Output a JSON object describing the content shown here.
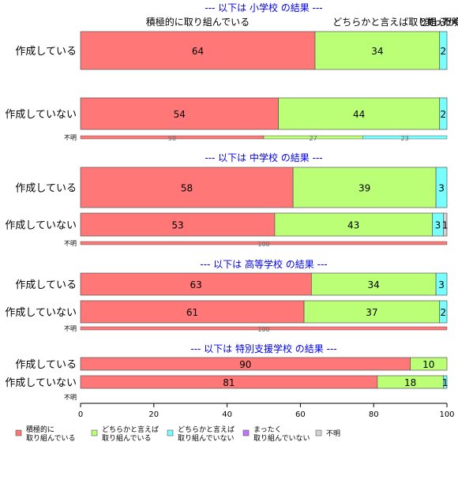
{
  "chart_data": {
    "type": "bar",
    "orientation": "horizontal",
    "stacked": true,
    "xlim": [
      0,
      100
    ],
    "x_ticks": [
      0,
      20,
      40,
      60,
      80,
      100
    ],
    "top_labels": [
      {
        "text": "積極的に取り組んでいる",
        "align": "center-of-first"
      },
      {
        "text": "どちらかと言えば取り組...",
        "align": "second"
      },
      {
        "text": "どちらか...",
        "align": "third"
      },
      {
        "text": "まったく...",
        "align": "fourth"
      },
      {
        "text": "不明",
        "align": "fifth"
      }
    ],
    "categories_legend": [
      {
        "line1": "積極的に",
        "line2": "取り組んでいる",
        "color": "#ff7777"
      },
      {
        "line1": "どちらかと言えば",
        "line2": "取り組んでいる",
        "color": "#bbff77"
      },
      {
        "line1": "どちらかと言えば",
        "line2": "取り組んでいない",
        "color": "#77ffff"
      },
      {
        "line1": "まったく",
        "line2": "取り組んでいない",
        "color": "#bb77ff"
      },
      {
        "line1": "不明",
        "line2": "",
        "color": "#d3d3d3"
      }
    ],
    "panels": [
      {
        "title": "--- 以下は 小学校 の結果 ---",
        "rows": [
          {
            "label": "作成している",
            "values": [
              64,
              34,
              2,
              0,
              0
            ],
            "labels": [
              "64",
              "34",
              "2",
              "",
              ""
            ]
          },
          {
            "label": "作成していない",
            "values": [
              54,
              44,
              2,
              0,
              0
            ],
            "labels": [
              "54",
              "44",
              "2",
              "",
              ""
            ]
          },
          {
            "label": "不明",
            "values": [
              50,
              27,
              23,
              0,
              0
            ],
            "labels": [
              "50",
              "27",
              "23",
              "",
              ""
            ],
            "thin": true
          }
        ]
      },
      {
        "title": "--- 以下は 中学校 の結果 ---",
        "rows": [
          {
            "label": "作成している",
            "values": [
              58,
              39,
              3,
              0,
              0
            ],
            "labels": [
              "58",
              "39",
              "3",
              "",
              ""
            ]
          },
          {
            "label": "作成していない",
            "values": [
              53,
              43,
              3,
              0,
              1
            ],
            "labels": [
              "53",
              "43",
              "3",
              "",
              "1"
            ]
          },
          {
            "label": "不明",
            "values": [
              100,
              0,
              0,
              0,
              0
            ],
            "labels": [
              "100",
              "",
              "",
              "",
              ""
            ],
            "thin": true
          }
        ]
      },
      {
        "title": "--- 以下は 高等学校 の結果 ---",
        "rows": [
          {
            "label": "作成している",
            "values": [
              63,
              34,
              3,
              0,
              0
            ],
            "labels": [
              "63",
              "34",
              "3",
              "",
              ""
            ]
          },
          {
            "label": "作成していない",
            "values": [
              61,
              37,
              2,
              0,
              0
            ],
            "labels": [
              "61",
              "37",
              "2",
              "",
              ""
            ]
          },
          {
            "label": "不明",
            "values": [
              100,
              0,
              0,
              0,
              0
            ],
            "labels": [
              "100",
              "",
              "",
              "",
              ""
            ],
            "thin": true
          }
        ]
      },
      {
        "title": "--- 以下は 特別支援学校 の結果 ---",
        "rows": [
          {
            "label": "作成している",
            "values": [
              90,
              10,
              0,
              0,
              0
            ],
            "labels": [
              "90",
              "10",
              "",
              "",
              ""
            ]
          },
          {
            "label": "作成していない",
            "values": [
              81,
              18,
              1,
              0,
              0
            ],
            "labels": [
              "81",
              "18",
              "1",
              "",
              ""
            ]
          },
          {
            "label": "不明",
            "values": [
              0,
              0,
              0,
              0,
              0
            ],
            "labels": [
              "",
              "",
              "",
              "",
              ""
            ],
            "thin": true
          }
        ]
      }
    ]
  }
}
